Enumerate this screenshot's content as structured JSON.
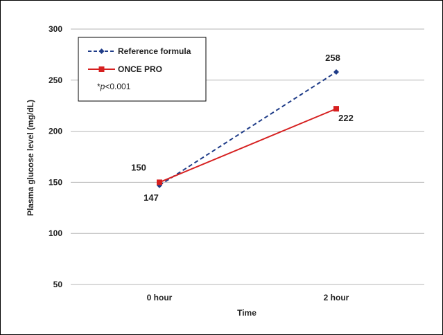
{
  "chart_data": {
    "type": "line",
    "xlabel": "Time",
    "ylabel": "Plasma glucose level (mg/dL)",
    "categories": [
      "0 hour",
      "2 hour"
    ],
    "ylim": [
      50,
      300
    ],
    "yticks": [
      50,
      100,
      150,
      200,
      250,
      300
    ],
    "grid": true,
    "legend_position": "top-left",
    "series": [
      {
        "name": "Reference formula",
        "values": [
          147,
          258
        ],
        "labels": [
          "147",
          "258"
        ],
        "color": "#1f3c88",
        "line_style": "dashed",
        "marker": "diamond"
      },
      {
        "name": "ONCE PRO",
        "values": [
          150,
          222
        ],
        "labels": [
          "150",
          "222"
        ],
        "color": "#d62020",
        "line_style": "solid",
        "marker": "square"
      }
    ],
    "annotation": {
      "prefix": "*",
      "italic": "p",
      "suffix": "<0.001"
    }
  }
}
